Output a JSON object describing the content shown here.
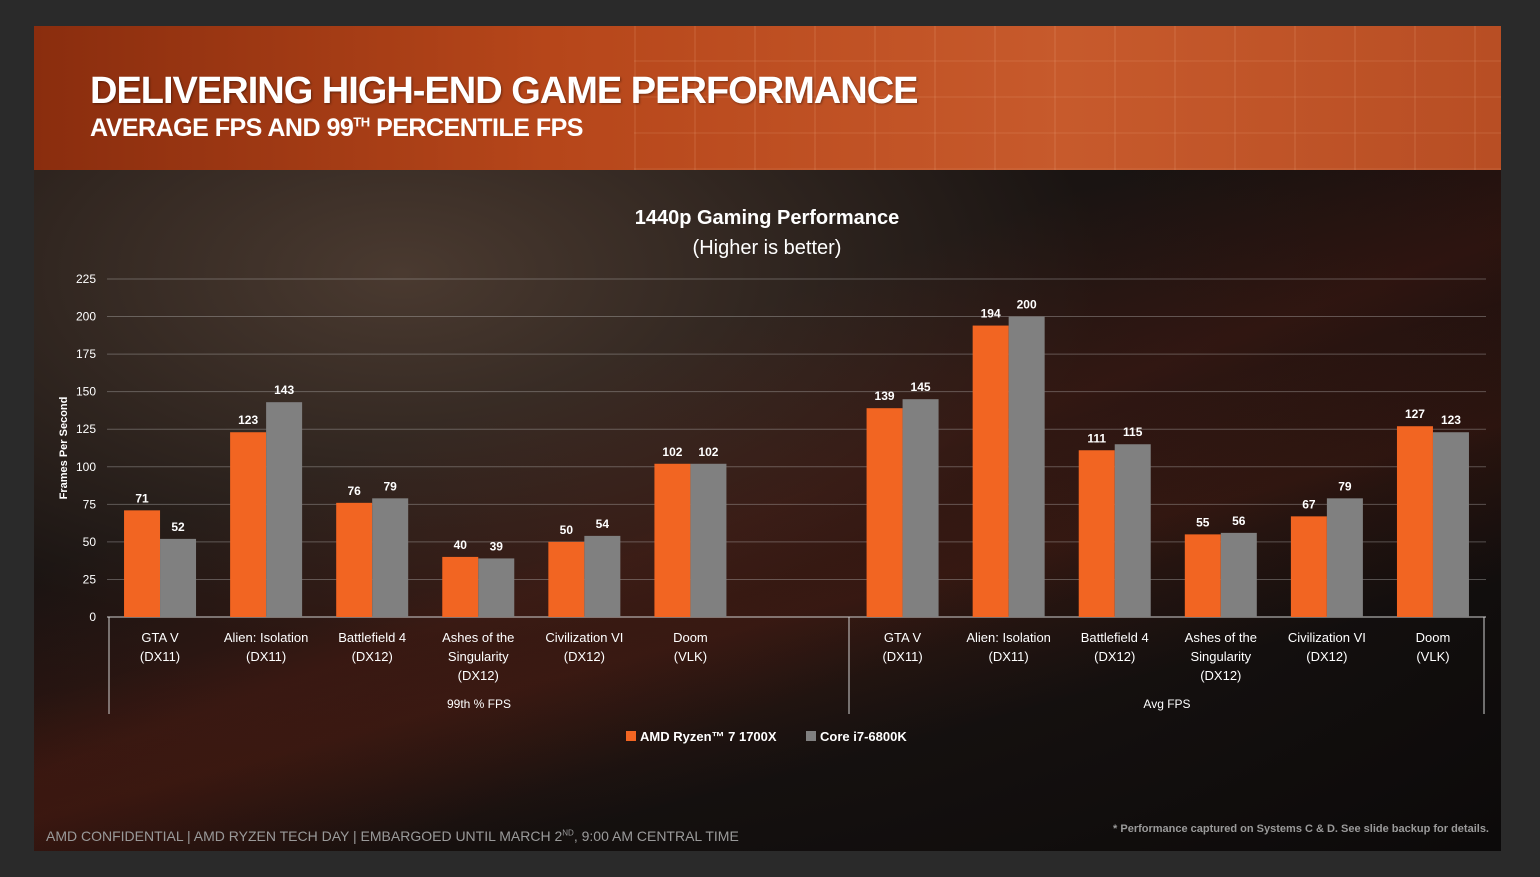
{
  "slide": {
    "title": "DELIVERING HIGH-END GAME PERFORMANCE",
    "subtitle_main": "AVERAGE FPS AND 99",
    "subtitle_sup": "TH",
    "subtitle_tail": " PERCENTILE FPS",
    "footer_left_main": "AMD CONFIDENTIAL | AMD RYZEN TECH DAY | EMBARGOED UNTIL MARCH 2",
    "footer_left_sup": "ND",
    "footer_left_tail": ", 9:00 AM CENTRAL TIME",
    "footer_right": "* Performance captured on Systems C & D. See slide backup for details."
  },
  "chart_data": {
    "type": "bar",
    "title": "1440p Gaming Performance",
    "subtitle": "(Higher is better)",
    "ylabel": "Frames Per Second",
    "xlabel": "",
    "ylim": [
      0,
      225
    ],
    "yticks": [
      0,
      25,
      50,
      75,
      100,
      125,
      150,
      175,
      200,
      225
    ],
    "grid": true,
    "legend_position": "bottom-center",
    "colors": {
      "amd": "#f26522",
      "intel": "#808080"
    },
    "groups": [
      {
        "name": "99th % FPS",
        "categories": [
          [
            "GTA V",
            "(DX11)"
          ],
          [
            "Alien: Isolation",
            "(DX11)"
          ],
          [
            "Battlefield 4",
            "(DX12)"
          ],
          [
            "Ashes of the",
            "Singularity",
            "(DX12)"
          ],
          [
            "Civilization VI",
            "(DX12)"
          ],
          [
            "Doom",
            "(VLK)"
          ]
        ]
      },
      {
        "name": "Avg FPS",
        "categories": [
          [
            "GTA V",
            "(DX11)"
          ],
          [
            "Alien: Isolation",
            "(DX11)"
          ],
          [
            "Battlefield 4",
            "(DX12)"
          ],
          [
            "Ashes of the",
            "Singularity",
            "(DX12)"
          ],
          [
            "Civilization VI",
            "(DX12)"
          ],
          [
            "Doom",
            "(VLK)"
          ]
        ]
      }
    ],
    "series": [
      {
        "name": "AMD Ryzen™ 7 1700X",
        "values": [
          71,
          123,
          76,
          40,
          50,
          102,
          139,
          194,
          111,
          55,
          67,
          127
        ]
      },
      {
        "name": "Core i7-6800K",
        "values": [
          52,
          143,
          79,
          39,
          54,
          102,
          145,
          200,
          115,
          56,
          79,
          123
        ]
      }
    ]
  }
}
